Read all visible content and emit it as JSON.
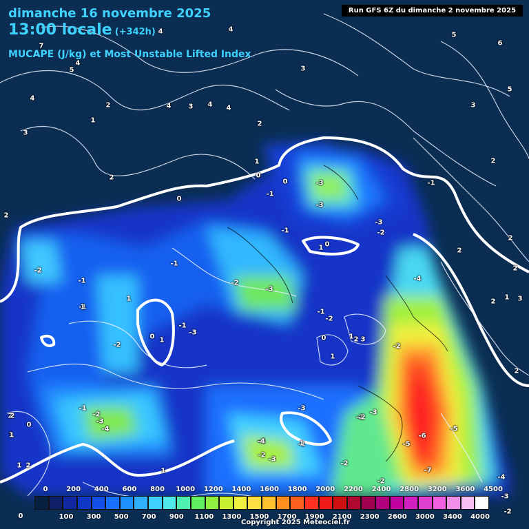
{
  "header": {
    "date_line": "dimanche 16 novembre 2025",
    "time_line": "13:00 locale",
    "lead_time": "(+342h)",
    "parameter": "MUCAPE (J/kg) et Most Unstable Lifted Index",
    "run_info": "Run GFS 6Z du dimanche 2 novembre 2025"
  },
  "footer": {
    "copyright": "Copyright 2025 Meteociel.fr"
  },
  "colors": {
    "background": "#0b2d52",
    "cape_low": "#1030c8",
    "cape_mid": "#40c0ff",
    "cape_green": "#60e060",
    "cape_yellow": "#f0f040",
    "cape_orange": "#ff9020",
    "cape_red": "#ff2020",
    "title": "#3fd2ff"
  },
  "color_scale": {
    "swatches": [
      "#082040",
      "#10206a",
      "#1028a0",
      "#1038c8",
      "#1450e8",
      "#1870ff",
      "#2090ff",
      "#30b0ff",
      "#40d0ff",
      "#50e8e8",
      "#50f0b0",
      "#60f060",
      "#90f040",
      "#c8f030",
      "#f0f040",
      "#ffe040",
      "#ffc030",
      "#ff9020",
      "#ff6020",
      "#ff3020",
      "#f01818",
      "#d01010",
      "#b00830",
      "#a00050",
      "#b00080",
      "#c000a0",
      "#d020c0",
      "#e040d0",
      "#f060e0",
      "#f090e8",
      "#f8c0f0",
      "#ffffff"
    ],
    "upper_ticks": [
      "0",
      "200",
      "400",
      "600",
      "800",
      "1000",
      "1200",
      "1400",
      "1600",
      "1800",
      "2000",
      "2200",
      "2400",
      "2800",
      "3200",
      "3600",
      "4500"
    ],
    "lower_ticks": [
      "100",
      "300",
      "500",
      "700",
      "900",
      "1100",
      "1300",
      "1500",
      "1700",
      "1900",
      "2100",
      "2300",
      "2600",
      "3000",
      "3400",
      "4000"
    ],
    "lower_left": "0"
  },
  "lifted_index_labels": [
    "-3",
    "-3",
    "-3",
    "-1",
    "-2",
    "-1",
    "-1",
    "-2",
    "-1",
    "-2",
    "-3",
    "-1",
    "-1",
    "-2",
    "-3",
    "-2",
    "-2",
    "-2",
    "-3",
    "-4",
    "-3",
    "-3",
    "-2",
    "-2",
    "-4",
    "-3",
    "-2",
    "-1",
    "-4",
    "-5",
    "-5",
    "-6",
    "-7",
    "-4",
    "-2",
    "-3",
    "-2",
    "-1",
    "-1",
    "-1",
    "-2",
    "-4"
  ],
  "contour_labels": [
    "4",
    "4",
    "5",
    "4",
    "4",
    "7",
    "2",
    "1",
    "3",
    "4",
    "3",
    "4",
    "4",
    "3",
    "2",
    "2",
    "1",
    "0",
    "0",
    "0",
    "0",
    "0",
    "1",
    "1",
    "0",
    "1",
    "1",
    "1",
    "2",
    "3",
    "2",
    "2",
    "0",
    "1",
    "1",
    "2",
    "2",
    "5",
    "6",
    "5",
    "3",
    "2",
    "2",
    "2",
    "2",
    "3",
    "2",
    "1",
    "1",
    "1",
    "2",
    "1",
    "1"
  ]
}
